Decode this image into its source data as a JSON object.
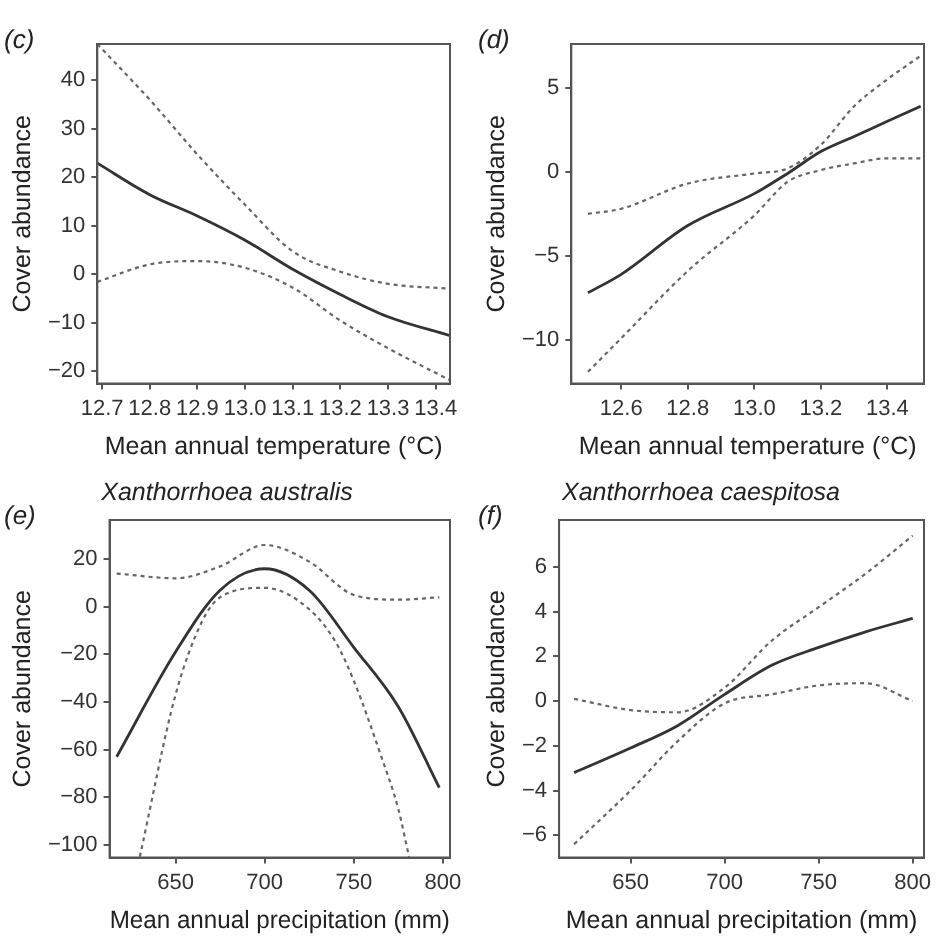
{
  "chart_data": [
    {
      "type": "line",
      "xlabel": "Mean annual temperature (°C)",
      "ylabel": "Cover abundance",
      "annotations": [
        "(c)"
      ],
      "xlim": [
        12.69,
        13.43
      ],
      "ylim": [
        -22.6,
        47.5
      ],
      "xticks": [
        12.7,
        12.8,
        12.9,
        {
          "value": 13,
          "label": "13.0"
        },
        13.1,
        13.2,
        13.3,
        13.4
      ],
      "yticks": [
        -20,
        -10,
        0,
        10,
        20,
        30,
        40
      ],
      "grid": false,
      "legend": false,
      "marker": "none",
      "x": [
        12.69,
        12.8,
        12.9,
        13.0,
        13.1,
        13.2,
        13.3,
        13.43
      ],
      "series": [
        {
          "color": "#333333",
          "line_style": "solid",
          "values": [
            22.9,
            16.4,
            12,
            7,
            1,
            -4.2,
            -8.8,
            -12.7
          ]
        },
        {
          "color": "#666666",
          "line_style": "dotted",
          "values": [
            47.5,
            36,
            24.7,
            14.3,
            4.7,
            0.5,
            -2,
            -3
          ]
        },
        {
          "color": "#666666",
          "line_style": "dotted",
          "values": [
            -1.6,
            2,
            2.7,
            1.3,
            -2.8,
            -9.6,
            -15.3,
            -21.9
          ]
        }
      ]
    },
    {
      "type": "line",
      "xlabel": "Mean annual temperature (°C)",
      "ylabel": "Cover abundance",
      "annotations": [
        "(d)"
      ],
      "xlim": [
        12.45,
        13.51
      ],
      "ylim": [
        -12.6,
        7.6
      ],
      "xticks": [
        12.6,
        12.8,
        {
          "value": 13,
          "label": "13.0"
        },
        13.2,
        13.4
      ],
      "yticks": [
        -10,
        -5,
        0,
        5
      ],
      "grid": false,
      "legend": false,
      "marker": "none",
      "x": [
        12.5,
        12.6,
        12.8,
        13.0,
        13.1,
        13.2,
        13.3,
        13.4,
        13.5
      ],
      "series": [
        {
          "color": "#333333",
          "line_style": "solid",
          "values": [
            -7.2,
            -6.1,
            -3.2,
            -1.3,
            -0.1,
            1.2,
            2.1,
            3,
            3.9
          ]
        },
        {
          "color": "#666666",
          "line_style": "dotted",
          "values": [
            -2.5,
            -2.2,
            -0.7,
            -0.1,
            0.2,
            1.6,
            3.9,
            5.5,
            6.9
          ]
        },
        {
          "color": "#666666",
          "line_style": "dotted",
          "values": [
            -11.9,
            -9.9,
            -5.9,
            -2.6,
            -0.6,
            0.1,
            0.5,
            0.8,
            0.8
          ]
        }
      ]
    },
    {
      "type": "line",
      "title": "Xanthorrhoea australis",
      "xlabel": "Mean annual precipitation (mm)",
      "ylabel": "Cover abundance",
      "annotations": [
        "(e)"
      ],
      "xlim": [
        613,
        804
      ],
      "ylim": [
        -105.4,
        36.5
      ],
      "xticks": [
        650,
        700,
        750,
        800
      ],
      "yticks": [
        -100,
        -80,
        -60,
        -40,
        -20,
        0,
        20
      ],
      "grid": false,
      "legend": false,
      "marker": "none",
      "x": [
        617,
        650,
        675,
        700,
        725,
        750,
        775,
        798
      ],
      "series": [
        {
          "color": "#333333",
          "line_style": "solid",
          "values": [
            -63,
            -19,
            7,
            16,
            7,
            -17,
            -42,
            -76
          ]
        },
        {
          "color": "#666666",
          "line_style": "dotted",
          "values": [
            14,
            12,
            17,
            26,
            19,
            5,
            3,
            4
          ]
        },
        {
          "color": "#666666",
          "line_style": "dotted",
          "x": [
            630,
            650,
            665,
            675,
            700,
            725,
            740,
            750,
            765,
            775,
            781
          ],
          "values": [
            -105,
            -37,
            -6,
            4,
            8,
            -1,
            -15,
            -31,
            -62,
            -85,
            -105
          ]
        }
      ]
    },
    {
      "type": "line",
      "title": "Xanthorrhoea caespitosa",
      "xlabel": "Mean annual precipitation (mm)",
      "ylabel": "Cover abundance",
      "annotations": [
        "(f)"
      ],
      "xlim": [
        612,
        806
      ],
      "ylim": [
        -7,
        8.1
      ],
      "xticks": [
        650,
        700,
        750,
        800
      ],
      "yticks": [
        -6,
        -4,
        -2,
        0,
        2,
        4,
        6
      ],
      "grid": false,
      "legend": false,
      "marker": "none",
      "x": [
        620,
        650,
        675,
        700,
        725,
        750,
        775,
        800
      ],
      "series": [
        {
          "color": "#333333",
          "line_style": "solid",
          "values": [
            -3.2,
            -2.1,
            -1.1,
            0.3,
            1.6,
            2.4,
            3.1,
            3.7
          ]
        },
        {
          "color": "#666666",
          "line_style": "dotted",
          "values": [
            0.1,
            -0.4,
            -0.5,
            0.6,
            2.7,
            4.2,
            5.7,
            7.4
          ]
        },
        {
          "color": "#666666",
          "line_style": "dotted",
          "values": [
            -6.4,
            -4,
            -1.8,
            -0.1,
            0.3,
            0.7,
            0.8,
            0
          ]
        }
      ]
    }
  ]
}
